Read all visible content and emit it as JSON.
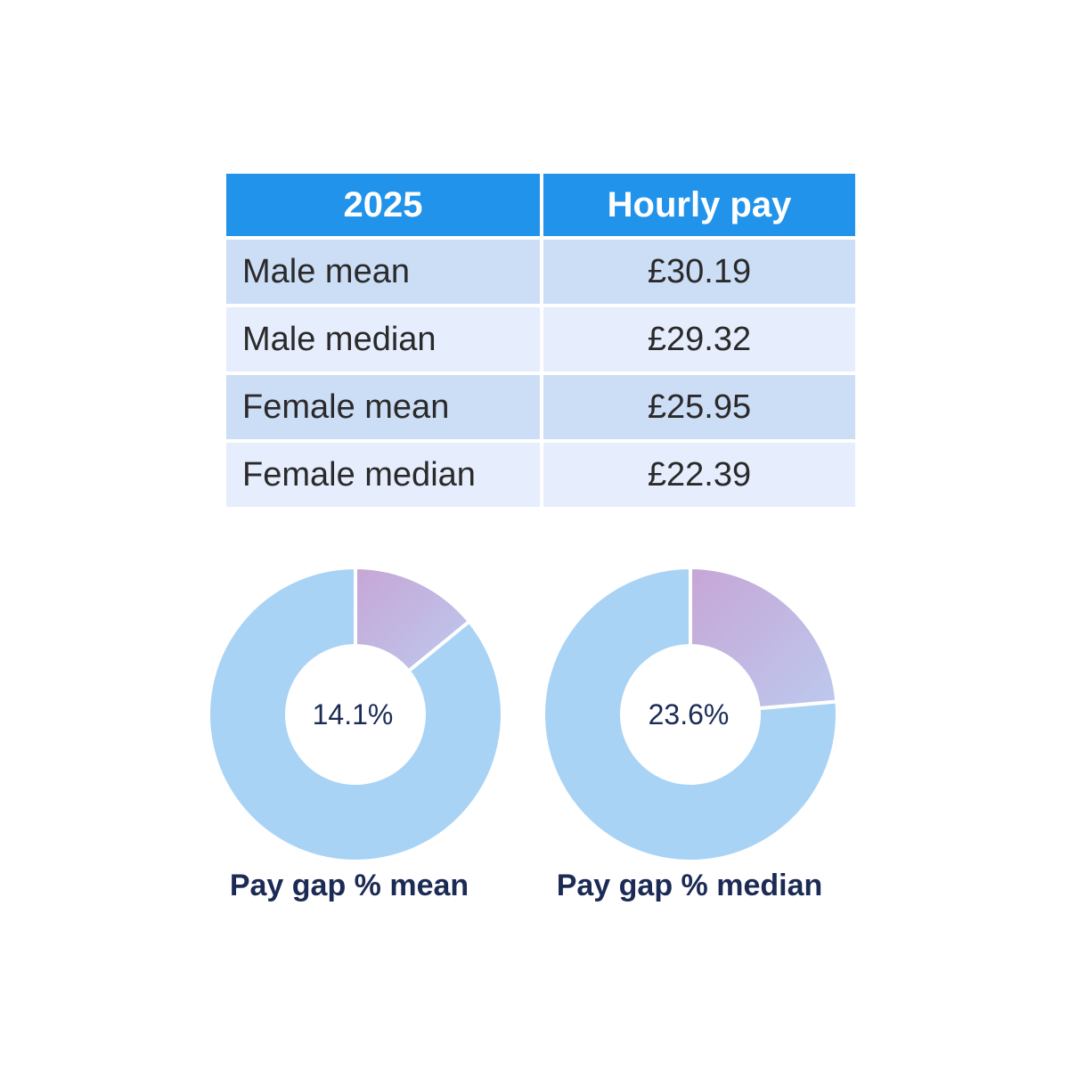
{
  "table": {
    "headers": [
      "2025",
      "Hourly pay"
    ],
    "rows": [
      {
        "label": "Male mean",
        "value": "£30.19"
      },
      {
        "label": "Male median",
        "value": "£29.32"
      },
      {
        "label": "Female mean",
        "value": "£25.95"
      },
      {
        "label": "Female median",
        "value": "£22.39"
      }
    ]
  },
  "colors": {
    "header_bg": "#2293ea",
    "row_odd_bg": "#ccddf6",
    "row_even_bg": "#e6edfd",
    "donut_base": "#a9d3f5",
    "gap_gradient_start": "#c7a6d6",
    "gap_gradient_end": "#bcc9ee",
    "caption_text": "#1c2b55"
  },
  "chart_data": [
    {
      "type": "pie",
      "variant": "donut",
      "values": [
        14.1,
        85.9
      ],
      "center_label": "14.1%",
      "caption": "Pay gap % mean"
    },
    {
      "type": "pie",
      "variant": "donut",
      "values": [
        23.6,
        76.4
      ],
      "center_label": "23.6%",
      "caption": "Pay gap % median"
    }
  ]
}
